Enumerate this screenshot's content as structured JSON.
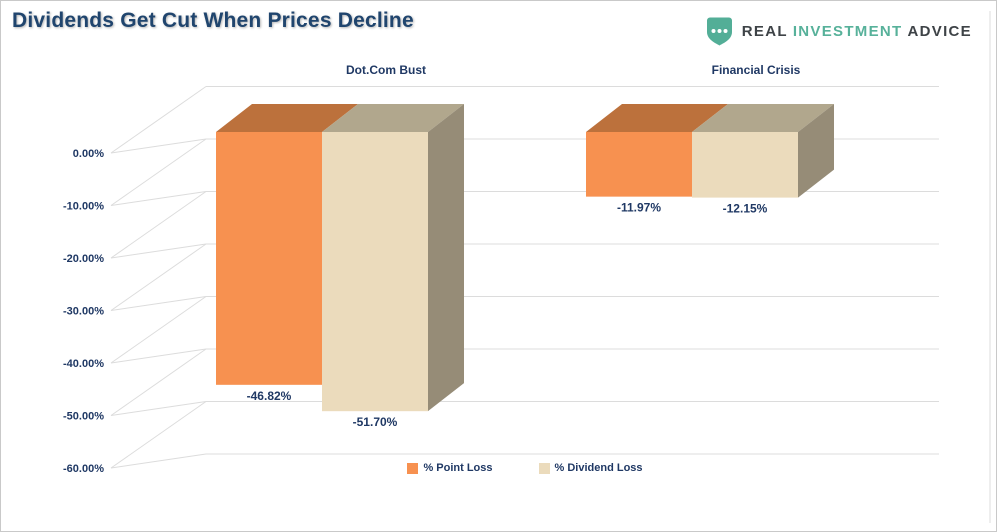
{
  "page": {
    "title": "Dividends Get Cut When Prices Decline"
  },
  "logo": {
    "brand_part1": "REAL",
    "brand_part2": "INVESTMENT",
    "brand_part3": "ADVICE",
    "shield_color": "#53ae97",
    "accent_color": "#57b19a",
    "dots": "•••"
  },
  "chart_data": {
    "type": "bar",
    "projection": "3d",
    "title": "Dividends Get Cut When Prices Decline",
    "categories": [
      "Dot.Com Bust",
      "Financial Crisis"
    ],
    "series": [
      {
        "name": "% Point Loss",
        "values": [
          -46.82,
          -11.97
        ],
        "labels": [
          "-46.82%",
          "-11.97%"
        ],
        "color_front": "#f79150",
        "color_top": "#bc713c",
        "color_side": "#a5602f"
      },
      {
        "name": "% Dividend Loss",
        "values": [
          -51.7,
          -12.15
        ],
        "labels": [
          "-51.70%",
          "-12.15%"
        ],
        "color_front": "#ebdbbc",
        "color_top": "#b1a78d",
        "color_side": "#968c77"
      }
    ],
    "y_ticks": [
      "0.00%",
      "-10.00%",
      "-20.00%",
      "-30.00%",
      "-40.00%",
      "-50.00%",
      "-60.00%"
    ],
    "ylim": [
      -60,
      10
    ],
    "grid": true,
    "grid_color": "#dcdcdc",
    "text_color": "#1f3864",
    "legend_position": "bottom"
  }
}
